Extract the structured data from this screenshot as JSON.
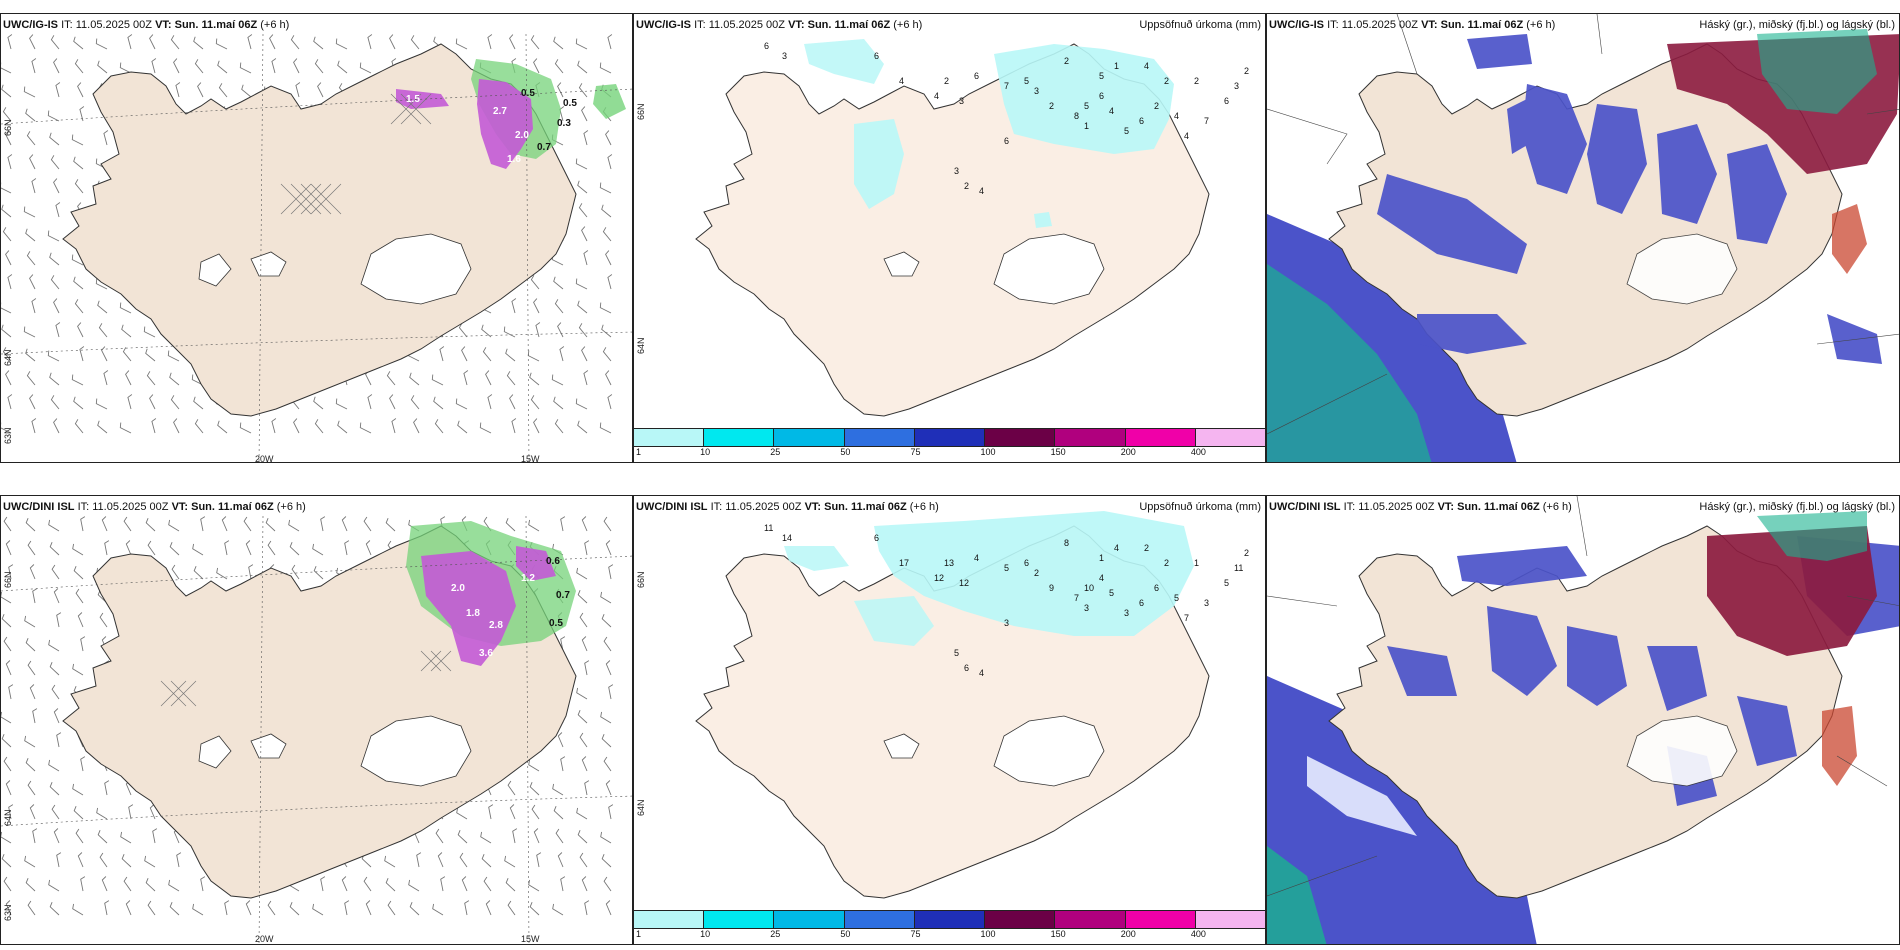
{
  "panels": [
    {
      "id": "ig-wind",
      "model": "UWC/IG-IS",
      "it_label": "IT:",
      "it_value": "11.05.2025 00Z",
      "vt_label": "VT:",
      "vt_value": "Sun. 11.maí 06Z",
      "lead": "(+6 h)",
      "right_title": "",
      "lon_labels": [
        "20W",
        "15W"
      ],
      "lat_labels": [
        "66N",
        "64N",
        "63N"
      ],
      "value_labels": [
        "0.5",
        "0.5",
        "2.7",
        "1.5",
        "0.3",
        "0.7",
        "1.6",
        "2.0"
      ]
    },
    {
      "id": "ig-precip",
      "model": "UWC/IG-IS",
      "it_label": "IT:",
      "it_value": "11.05.2025 00Z",
      "vt_label": "VT:",
      "vt_value": "Sun. 11.maí 06Z",
      "lead": "(+6 h)",
      "right_title": "Uppsöfnuð úrkoma (mm)",
      "lat_labels": [
        "66N",
        "64N"
      ],
      "values": [
        "6",
        "3",
        "6",
        "4",
        "4",
        "2",
        "3",
        "6",
        "7",
        "5",
        "2",
        "3",
        "2",
        "8",
        "5",
        "6",
        "4",
        "5",
        "6",
        "2",
        "4",
        "4",
        "7",
        "6",
        "3",
        "2",
        "2",
        "2",
        "4",
        "1",
        "5",
        "1",
        "6",
        "3",
        "2",
        "4"
      ]
    },
    {
      "id": "ig-cloud",
      "model": "UWC/IG-IS",
      "it_label": "IT:",
      "it_value": "11.05.2025 00Z",
      "vt_label": "VT:",
      "vt_value": "Sun. 11.maí 06Z",
      "lead": "(+6 h)",
      "right_title": "Háský (gr.), miðský (fj.bl.) og lágský (bl.)"
    },
    {
      "id": "dini-wind",
      "model": "UWC/DINI ISL",
      "it_label": "IT:",
      "it_value": "11.05.2025 00Z",
      "vt_label": "VT:",
      "vt_value": "Sun. 11.maí 06Z",
      "lead": "(+6 h)",
      "right_title": "",
      "lon_labels": [
        "20W",
        "15W"
      ],
      "lat_labels": [
        "66N",
        "64N",
        "63N"
      ],
      "value_labels": [
        "2.0",
        "1.8",
        "2.8",
        "3.6",
        "0.6",
        "0.7",
        "0.5",
        "1.2"
      ]
    },
    {
      "id": "dini-precip",
      "model": "UWC/DINI ISL",
      "it_label": "IT:",
      "it_value": "11.05.2025 00Z",
      "vt_label": "VT:",
      "vt_value": "Sun. 11.maí 06Z",
      "lead": "(+6 h)",
      "right_title": "Uppsöfnuð úrkoma (mm)",
      "lat_labels": [
        "66N",
        "64N"
      ],
      "values": [
        "11",
        "14",
        "6",
        "17",
        "12",
        "13",
        "12",
        "4",
        "5",
        "6",
        "9",
        "2",
        "8",
        "7",
        "10",
        "4",
        "5",
        "3",
        "6",
        "6",
        "5",
        "7",
        "3",
        "5",
        "11",
        "2",
        "1",
        "2",
        "2",
        "4",
        "1",
        "3",
        "3",
        "5",
        "6",
        "4"
      ]
    },
    {
      "id": "dini-cloud",
      "model": "UWC/DINI ISL",
      "it_label": "IT:",
      "it_value": "11.05.2025 00Z",
      "vt_label": "VT:",
      "vt_value": "Sun. 11.maí 06Z",
      "lead": "(+6 h)",
      "right_title": "Háský (gr.), miðský (fj.bl.) og lágský (bl.)"
    }
  ],
  "precip_legend": {
    "ticks": [
      "1",
      "10",
      "25",
      "50",
      "75",
      "100",
      "150",
      "200",
      "400"
    ],
    "colors": [
      "#b8f7f7",
      "#00e8ef",
      "#00b9e6",
      "#2e6fe0",
      "#1f2fb8",
      "#6b0046",
      "#b0007e",
      "#f000a8",
      "#f5b5f0"
    ]
  },
  "colors": {
    "land": "#f2e4d6",
    "land_light": "#faeee4",
    "glacier": "#ffffff",
    "coast": "#333333",
    "precip_cyan": "#b8f7f7",
    "cloud_low": "#4b53c9",
    "cloud_mid": "#1ab390",
    "cloud_high": "#8c1b3f",
    "wind_green": "#76d37a",
    "wind_purple": "#c35ad6"
  }
}
